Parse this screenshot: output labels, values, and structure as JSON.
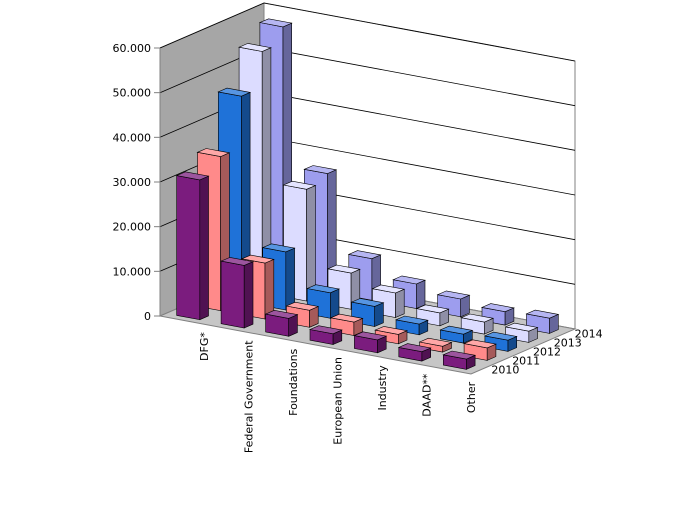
{
  "chart_data": {
    "type": "bar",
    "title": "",
    "xlabel": "",
    "ylabel": "",
    "ylim": [
      0,
      60000
    ],
    "y_ticks": [
      "0",
      "10.000",
      "20.000",
      "30.000",
      "40.000",
      "50.000",
      "60.000"
    ],
    "y_tick_values": [
      0,
      10000,
      20000,
      30000,
      40000,
      50000,
      60000
    ],
    "grid": true,
    "projection": "3d-column",
    "categories": [
      "DFG*",
      "Federal Government",
      "Foundations",
      "European Union",
      "Industry",
      "DAAD**",
      "Other"
    ],
    "series": [
      {
        "name": "2010",
        "color": "#7b1c7e",
        "values": [
          31300,
          14000,
          4000,
          2400,
          2900,
          2100,
          2300
        ]
      },
      {
        "name": "2011",
        "color": "#ff8a8a",
        "values": [
          34500,
          12500,
          3800,
          3000,
          2100,
          1300,
          2800
        ]
      },
      {
        "name": "2012",
        "color": "#1f72d8",
        "values": [
          46000,
          13000,
          5700,
          4500,
          2400,
          2000,
          2500
        ]
      },
      {
        "name": "2013",
        "color": "#dcdcff",
        "values": [
          54000,
          25000,
          8100,
          5500,
          2900,
          2700,
          2500
        ]
      },
      {
        "name": "2014",
        "color": "#9d9dee",
        "values": [
          57500,
          26500,
          9300,
          5500,
          4000,
          3000,
          3400
        ]
      }
    ]
  }
}
